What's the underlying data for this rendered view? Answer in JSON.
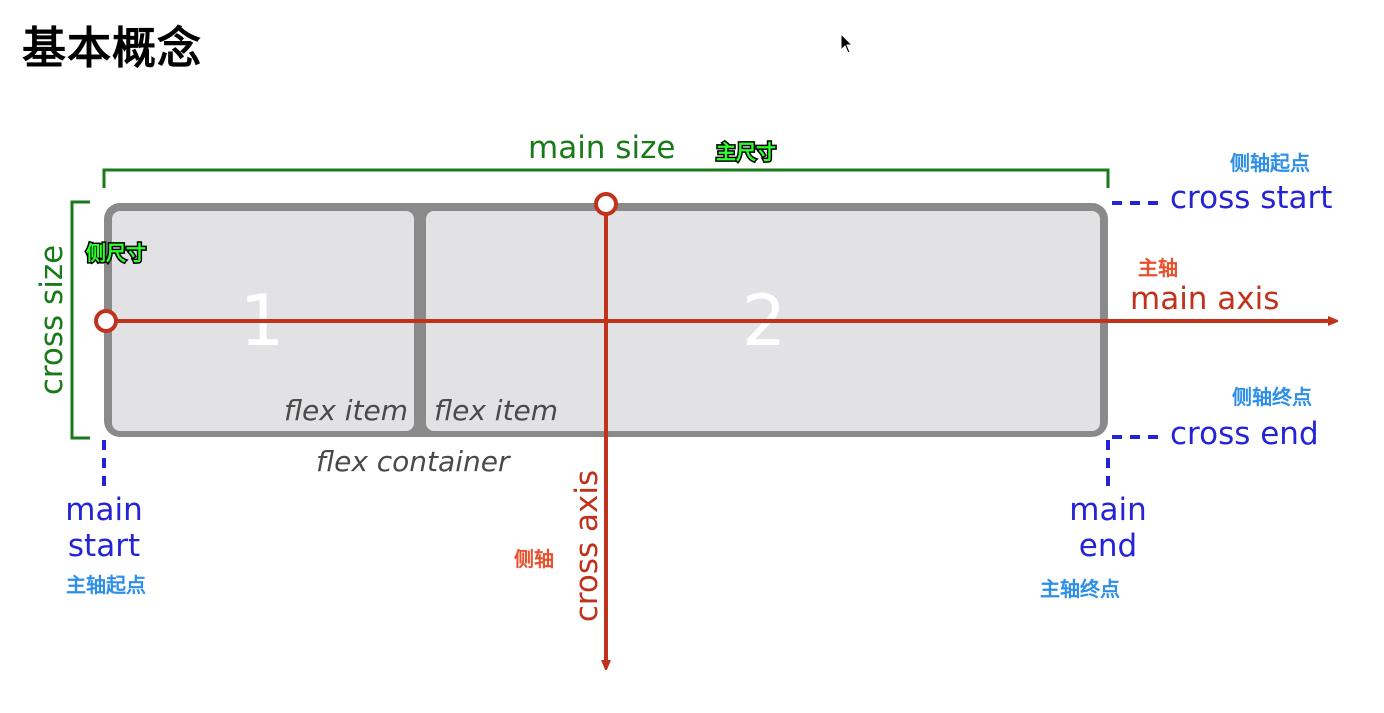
{
  "page": {
    "title": "基本概念"
  },
  "diagram": {
    "main_size_label": "main size",
    "main_size_cn": "主尺寸",
    "cross_size_label": "cross size",
    "cross_size_cn": "侧尺寸",
    "main_axis_label": "main axis",
    "main_axis_cn": "主轴",
    "cross_axis_label": "cross axis",
    "cross_axis_cn": "侧轴",
    "cross_start_label": "cross start",
    "cross_start_cn": "侧轴起点",
    "cross_end_label": "cross end",
    "cross_end_cn": "侧轴终点",
    "main_start_line1": "main",
    "main_start_line2": "start",
    "main_start_cn": "主轴起点",
    "main_end_line1": "main",
    "main_end_line2": "end",
    "main_end_cn": "主轴终点",
    "item1_number": "1",
    "item2_number": "2",
    "item1_label": "flex item",
    "item2_label": "flex item",
    "container_label": "flex container"
  },
  "colors": {
    "green": "#1a7a1a",
    "red": "#c0321c",
    "blue": "#2424d6",
    "light_blue": "#2e8fe8",
    "container_border": "#8a8a8a",
    "item_fill": "#e2e2e4",
    "neon_green": "#2cff2c"
  },
  "icons": {
    "cursor": "mouse-pointer-icon"
  }
}
